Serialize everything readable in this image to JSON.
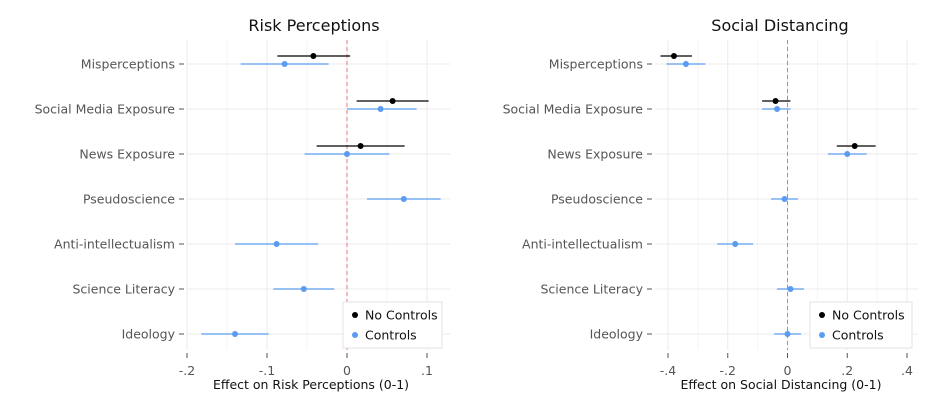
{
  "chart_data": [
    {
      "type": "scatter",
      "title": "Risk Perceptions",
      "xlabel": "Effect on Risk Perceptions (0-1)",
      "ylabel": "",
      "xlim": [
        -0.2,
        0.13
      ],
      "xticks": [
        -0.2,
        -0.1,
        0,
        0.1
      ],
      "xtick_labels": [
        "-.2",
        "-.1",
        "0",
        ".1"
      ],
      "reference_line": 0,
      "categories": [
        "Misperceptions",
        "Social Media Exposure",
        "News Exposure",
        "Pseudoscience",
        "Anti-intellectualism",
        "Science Literacy",
        "Ideology"
      ],
      "series": [
        {
          "name": "No Controls",
          "color": "#000000",
          "points": [
            {
              "category": "Misperceptions",
              "estimate": -0.042,
              "low": -0.087,
              "high": 0.004
            },
            {
              "category": "Social Media Exposure",
              "estimate": 0.057,
              "low": 0.012,
              "high": 0.102
            },
            {
              "category": "News Exposure",
              "estimate": 0.017,
              "low": -0.038,
              "high": 0.072
            }
          ]
        },
        {
          "name": "Controls",
          "color": "#5b9cf0",
          "points": [
            {
              "category": "Misperceptions",
              "estimate": -0.078,
              "low": -0.133,
              "high": -0.023
            },
            {
              "category": "Social Media Exposure",
              "estimate": 0.042,
              "low": 0.0,
              "high": 0.087
            },
            {
              "category": "News Exposure",
              "estimate": 0.0,
              "low": -0.053,
              "high": 0.053
            },
            {
              "category": "Pseudoscience",
              "estimate": 0.071,
              "low": 0.025,
              "high": 0.117
            },
            {
              "category": "Anti-intellectualism",
              "estimate": -0.088,
              "low": -0.14,
              "high": -0.036
            },
            {
              "category": "Science Literacy",
              "estimate": -0.054,
              "low": -0.092,
              "high": -0.016
            },
            {
              "category": "Ideology",
              "estimate": -0.14,
              "low": -0.182,
              "high": -0.098
            }
          ]
        }
      ],
      "legend": "bottom-right",
      "grid": true
    },
    {
      "type": "scatter",
      "title": "Social Distancing",
      "xlabel": "Effect on Social Distancing (0-1)",
      "ylabel": "",
      "xlim": [
        -0.44,
        0.44
      ],
      "xticks": [
        -0.4,
        -0.2,
        0,
        0.2,
        0.4
      ],
      "xtick_labels": [
        "-.4",
        "-.2",
        "0",
        ".2",
        ".4"
      ],
      "reference_line": 0,
      "categories": [
        "Misperceptions",
        "Social Media Exposure",
        "News Exposure",
        "Pseudoscience",
        "Anti-intellectualism",
        "Science Literacy",
        "Ideology"
      ],
      "series": [
        {
          "name": "No Controls",
          "color": "#000000",
          "points": [
            {
              "category": "Misperceptions",
              "estimate": -0.38,
              "low": -0.425,
              "high": -0.32
            },
            {
              "category": "Social Media Exposure",
              "estimate": -0.04,
              "low": -0.085,
              "high": 0.01
            },
            {
              "category": "News Exposure",
              "estimate": 0.225,
              "low": 0.165,
              "high": 0.295
            }
          ]
        },
        {
          "name": "Controls",
          "color": "#5b9cf0",
          "points": [
            {
              "category": "Misperceptions",
              "estimate": -0.34,
              "low": -0.405,
              "high": -0.275
            },
            {
              "category": "Social Media Exposure",
              "estimate": -0.035,
              "low": -0.085,
              "high": 0.01
            },
            {
              "category": "News Exposure",
              "estimate": 0.2,
              "low": 0.135,
              "high": 0.265
            },
            {
              "category": "Pseudoscience",
              "estimate": -0.01,
              "low": -0.055,
              "high": 0.035
            },
            {
              "category": "Anti-intellectualism",
              "estimate": -0.175,
              "low": -0.235,
              "high": -0.115
            },
            {
              "category": "Science Literacy",
              "estimate": 0.01,
              "low": -0.035,
              "high": 0.055
            },
            {
              "category": "Ideology",
              "estimate": 0.0,
              "low": -0.045,
              "high": 0.045
            }
          ]
        }
      ],
      "legend": "bottom-right",
      "grid": true
    }
  ]
}
